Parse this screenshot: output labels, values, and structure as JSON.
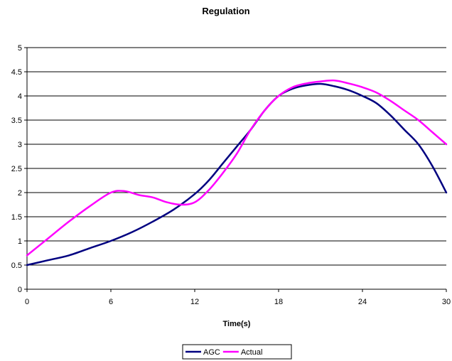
{
  "chart_data": {
    "type": "line",
    "title": "Regulation",
    "xlabel": "Time(s)",
    "ylabel": "",
    "xlim": [
      0,
      30
    ],
    "ylim": [
      0,
      5
    ],
    "x_ticks": [
      0,
      6,
      12,
      18,
      24,
      30
    ],
    "y_ticks": [
      0,
      0.5,
      1,
      1.5,
      2,
      2.5,
      3,
      3.5,
      4,
      4.5,
      5
    ],
    "grid": "horizontal",
    "legend_position": "bottom",
    "series": [
      {
        "name": "AGC",
        "color": "#000080",
        "x": [
          0,
          1.5,
          3,
          4.5,
          6,
          7.5,
          9,
          10.5,
          12,
          13,
          14,
          15,
          16,
          17,
          18,
          19,
          20,
          21,
          22,
          23,
          24,
          25,
          26,
          27,
          28,
          29,
          30
        ],
        "y": [
          0.5,
          0.6,
          0.7,
          0.85,
          1.0,
          1.18,
          1.4,
          1.65,
          1.97,
          2.25,
          2.6,
          2.95,
          3.3,
          3.7,
          4.0,
          4.15,
          4.22,
          4.25,
          4.2,
          4.12,
          4.0,
          3.85,
          3.6,
          3.3,
          3.0,
          2.55,
          2.0
        ]
      },
      {
        "name": "Actual",
        "color": "#FF00FF",
        "x": [
          0,
          1.5,
          3,
          4.5,
          6,
          7,
          8,
          9,
          10,
          11,
          12,
          13,
          14,
          15,
          16,
          17,
          18,
          19,
          20,
          21,
          22,
          23,
          24,
          25,
          26,
          27,
          28,
          29,
          30
        ],
        "y": [
          0.7,
          1.05,
          1.4,
          1.72,
          2.0,
          2.03,
          1.95,
          1.9,
          1.8,
          1.75,
          1.8,
          2.05,
          2.4,
          2.8,
          3.3,
          3.7,
          4.0,
          4.18,
          4.26,
          4.3,
          4.32,
          4.26,
          4.18,
          4.07,
          3.9,
          3.7,
          3.5,
          3.25,
          3.0
        ]
      }
    ]
  }
}
